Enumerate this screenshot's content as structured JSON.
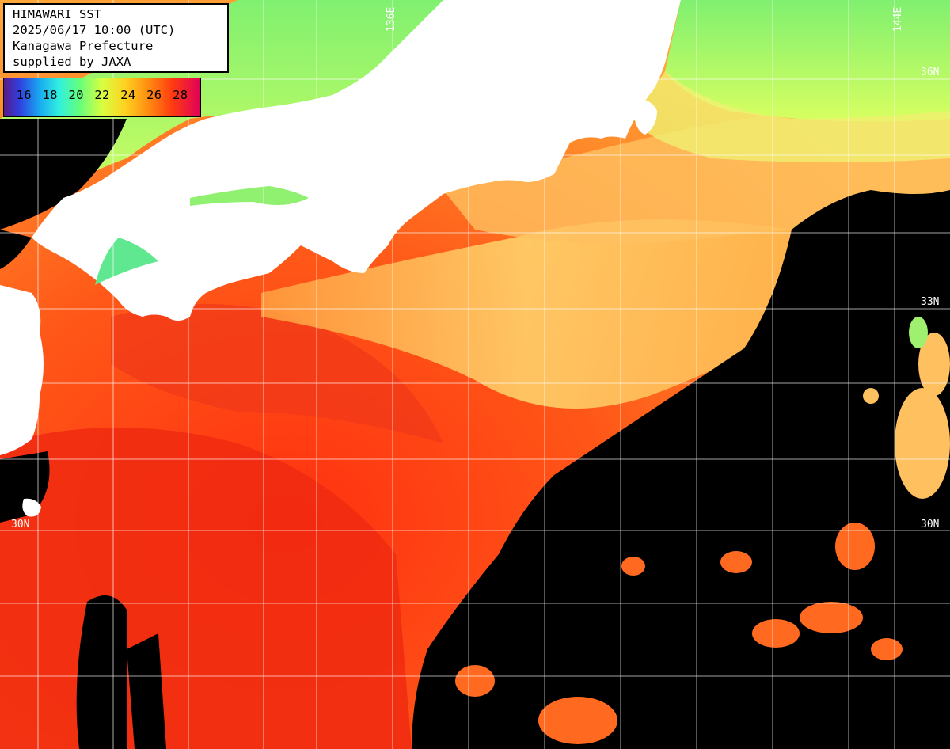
{
  "info": {
    "title": "HIMAWARI SST",
    "datetime": "2025/06/17 10:00 (UTC)",
    "provider": "Kanagawa Prefecture",
    "credit": "supplied by JAXA"
  },
  "legend": {
    "labels": [
      "16",
      "18",
      "20",
      "22",
      "24",
      "26",
      "28"
    ],
    "colors": [
      "#5a1a8a",
      "#3040e0",
      "#18a8f0",
      "#30f0e0",
      "#60ff80",
      "#d8ff40",
      "#ffd020",
      "#ff8a10",
      "#ff3a10",
      "#e0005a"
    ]
  },
  "coordinate_labels": {
    "lon_left": "136E",
    "lon_right": "144E",
    "lat_top": "36N",
    "lat_mid": "33N",
    "lat_bottom_right": "30N",
    "lat_bottom_left": "30N"
  },
  "colors": {
    "land": "#ffffff",
    "no_data": "#000000",
    "grid": "#ffffff"
  }
}
